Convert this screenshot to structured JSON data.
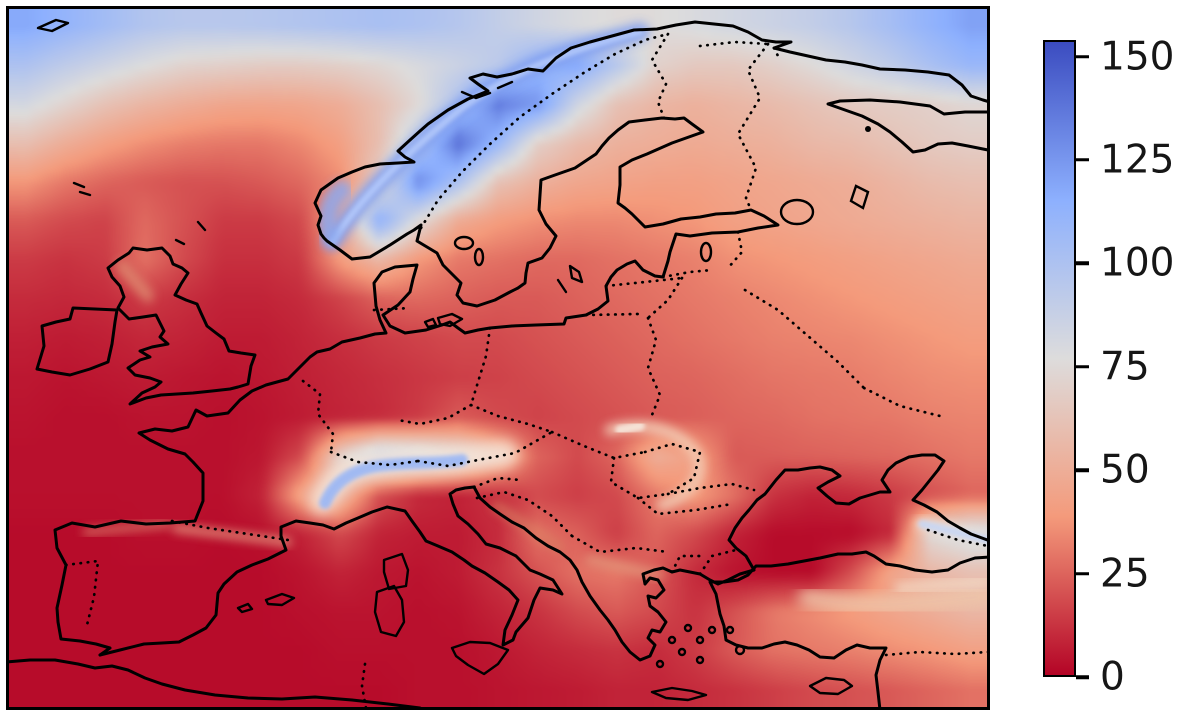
{
  "figure": {
    "background": "#ffffff",
    "title": "",
    "description": "geographic heatmap of Europe with vertical colorbar on the right"
  },
  "chart_data": {
    "type": "heatmap",
    "title": "",
    "xlabel": "",
    "ylabel": "",
    "axes_ticks": "none (no lat/lon tick labels shown)",
    "region": "Europe (approx 12W-42E, 34N-72N)",
    "colormap": "coolwarm reversed: low values dark red, high values blue",
    "colormap_stops": [
      {
        "v": 0,
        "c": "#b40426"
      },
      {
        "v": 38.5,
        "c": "#f49a7b"
      },
      {
        "v": 77,
        "c": "#dddcdc"
      },
      {
        "v": 115.5,
        "c": "#8db0fe"
      },
      {
        "v": 154,
        "c": "#3b4cc0"
      }
    ],
    "colorbar": {
      "orientation": "vertical",
      "side": "right",
      "vmin": 0,
      "vmax": 154,
      "ticks": [
        0,
        25,
        50,
        75,
        100,
        125,
        150
      ],
      "outline_color": "#000000",
      "tick_label_color": "#161616"
    },
    "map_styles": {
      "coastline": "solid black",
      "country_borders": "dotted black",
      "frame": "solid black"
    },
    "notable_regions": [
      {
        "region": "Arctic far north / top corners",
        "approx_value": "90-125"
      },
      {
        "region": "Scandinavian mountain ridge (Norway)",
        "approx_value": "110-155"
      },
      {
        "region": "Alps",
        "approx_value": "80-120"
      },
      {
        "region": "Carpathians",
        "approx_value": "40-65"
      },
      {
        "region": "Caucasus coast NE of Black Sea",
        "approx_value": "60-90"
      },
      {
        "region": "Eastern Anatolia (Turkey)",
        "approx_value": "30-60"
      },
      {
        "region": "Scottish Highlands",
        "approx_value": "25-35"
      },
      {
        "region": "NE European Russia",
        "approx_value": "30-70"
      },
      {
        "region": "Western / Southern Europe lowlands and seas",
        "approx_value": "0-10"
      }
    ],
    "grid": {
      "cols": 25,
      "rows": 18,
      "note": "approximate field values sampled on a regular grid, left-to-right, top-to-bottom",
      "values": [
        [
          118,
          112,
          105,
          98,
          95,
          95,
          96,
          98,
          100,
          102,
          100,
          96,
          90,
          84,
          79,
          76,
          76,
          79,
          83,
          86,
          90,
          96,
          104,
          113,
          121
        ],
        [
          100,
          92,
          85,
          78,
          72,
          70,
          68,
          68,
          70,
          74,
          80,
          86,
          93,
          110,
          118,
          96,
          71,
          66,
          66,
          70,
          76,
          84,
          92,
          102,
          110
        ],
        [
          82,
          72,
          62,
          55,
          50,
          46,
          45,
          46,
          50,
          60,
          75,
          100,
          135,
          125,
          85,
          62,
          55,
          52,
          55,
          58,
          62,
          66,
          68,
          70,
          74
        ],
        [
          60,
          50,
          42,
          36,
          32,
          30,
          30,
          34,
          42,
          60,
          95,
          140,
          110,
          70,
          58,
          52,
          50,
          48,
          50,
          52,
          56,
          58,
          62,
          66,
          68
        ],
        [
          38,
          30,
          25,
          22,
          20,
          20,
          22,
          26,
          35,
          70,
          130,
          100,
          62,
          52,
          46,
          44,
          42,
          42,
          44,
          46,
          48,
          50,
          54,
          58,
          60
        ],
        [
          22,
          18,
          16,
          26,
          20,
          14,
          14,
          18,
          45,
          115,
          75,
          48,
          40,
          36,
          34,
          34,
          36,
          38,
          42,
          44,
          46,
          48,
          50,
          52,
          54
        ],
        [
          14,
          12,
          14,
          28,
          18,
          11,
          11,
          14,
          40,
          55,
          38,
          30,
          28,
          26,
          26,
          28,
          30,
          32,
          36,
          38,
          40,
          42,
          44,
          46,
          48
        ],
        [
          10,
          9,
          10,
          14,
          11,
          8,
          8,
          10,
          16,
          24,
          26,
          24,
          22,
          22,
          24,
          26,
          28,
          30,
          32,
          34,
          36,
          38,
          40,
          42,
          44
        ],
        [
          7,
          6,
          7,
          9,
          8,
          6,
          6,
          8,
          11,
          14,
          16,
          18,
          18,
          20,
          22,
          24,
          26,
          28,
          30,
          32,
          33,
          34,
          36,
          38,
          40
        ],
        [
          5,
          4,
          5,
          6,
          5,
          4,
          5,
          7,
          9,
          11,
          13,
          15,
          16,
          18,
          20,
          22,
          24,
          25,
          27,
          29,
          30,
          31,
          33,
          35,
          36
        ],
        [
          4,
          3,
          3,
          4,
          4,
          3,
          4,
          6,
          8,
          10,
          14,
          22,
          18,
          16,
          18,
          20,
          22,
          23,
          25,
          26,
          28,
          29,
          30,
          32,
          33
        ],
        [
          3,
          3,
          3,
          3,
          3,
          3,
          5,
          18,
          70,
          95,
          88,
          75,
          50,
          25,
          18,
          25,
          50,
          42,
          22,
          23,
          24,
          25,
          26,
          28,
          30
        ],
        [
          3,
          3,
          3,
          3,
          3,
          3,
          8,
          45,
          55,
          20,
          10,
          8,
          12,
          18,
          15,
          18,
          30,
          40,
          28,
          12,
          8,
          10,
          14,
          20,
          25
        ],
        [
          2,
          2,
          2,
          3,
          3,
          2,
          3,
          8,
          18,
          8,
          6,
          6,
          10,
          28,
          24,
          15,
          25,
          18,
          8,
          2,
          2,
          2,
          10,
          75,
          85
        ],
        [
          2,
          2,
          2,
          2,
          2,
          2,
          2,
          4,
          8,
          5,
          4,
          6,
          12,
          20,
          28,
          30,
          22,
          10,
          4,
          2,
          2,
          20,
          45,
          55,
          60
        ],
        [
          2,
          2,
          2,
          2,
          2,
          2,
          2,
          3,
          4,
          4,
          3,
          4,
          8,
          12,
          18,
          22,
          18,
          12,
          20,
          30,
          35,
          40,
          45,
          50,
          55
        ],
        [
          2,
          2,
          2,
          2,
          2,
          2,
          2,
          2,
          3,
          3,
          3,
          3,
          5,
          8,
          10,
          12,
          10,
          14,
          22,
          28,
          30,
          32,
          35,
          38,
          42
        ],
        [
          2,
          2,
          2,
          2,
          2,
          2,
          2,
          2,
          2,
          2,
          3,
          3,
          4,
          5,
          6,
          8,
          8,
          10,
          12,
          15,
          18,
          20,
          22,
          25,
          28
        ]
      ]
    }
  }
}
